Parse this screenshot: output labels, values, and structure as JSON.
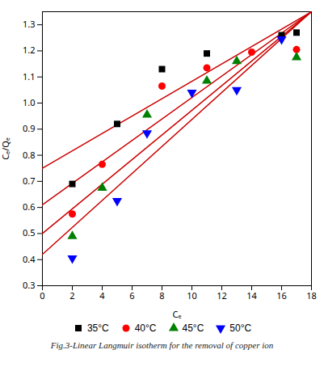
{
  "chart_data": {
    "type": "scatter",
    "title": "Fig.3-Linear Langmuir isotherm for the removal of copper ion",
    "xlabel": "Cₑ",
    "ylabel": "Cₑ/Qₑ",
    "xlim": [
      0,
      18
    ],
    "ylim": [
      0.3,
      1.35
    ],
    "xticks": [
      0,
      2,
      4,
      6,
      8,
      10,
      12,
      14,
      16,
      18
    ],
    "yticks": [
      0.3,
      0.4,
      0.5,
      0.6,
      0.7,
      0.8,
      0.9,
      {
        "value": 1,
        "label": "1.0"
      },
      1.1,
      1.2,
      1.3
    ],
    "grid": false,
    "series": [
      {
        "type": "line",
        "color": "#cc0000",
        "x": [
          0,
          18
        ],
        "values": [
          0.75,
          1.3494
        ]
      },
      {
        "type": "line",
        "color": "#cc0000",
        "x": [
          0,
          18
        ],
        "values": [
          0.61,
          1.3498
        ]
      },
      {
        "type": "line",
        "color": "#cc0000",
        "x": [
          0,
          18
        ],
        "values": [
          0.5,
          1.3496
        ]
      },
      {
        "type": "line",
        "color": "#cc0000",
        "x": [
          0,
          17.9639
        ],
        "values": [
          0.42,
          1.348735
        ]
      },
      {
        "type": "scatter",
        "name": "35°C",
        "color": "black",
        "marker": "square",
        "x": [
          2,
          5,
          8,
          11,
          16,
          17
        ],
        "values": [
          0.69,
          0.92,
          1.13,
          1.19,
          1.26,
          1.27
        ]
      },
      {
        "type": "scatter",
        "name": "40°C",
        "color": "red",
        "marker": "circle",
        "x": [
          2,
          4,
          8,
          11,
          14,
          17
        ],
        "values": [
          0.575,
          0.765,
          1.065,
          1.135,
          1.195,
          1.205
        ]
      },
      {
        "type": "scatter",
        "name": "45°C",
        "color": "green",
        "marker": "triangle-up",
        "x": [
          2,
          4,
          7,
          11,
          13,
          17
        ],
        "values": [
          0.49,
          0.675,
          0.955,
          1.085,
          1.16,
          1.175
        ]
      },
      {
        "type": "scatter",
        "name": "50°C",
        "color": "blue",
        "marker": "triangle-down",
        "x": [
          2,
          5,
          7,
          10,
          13,
          16
        ],
        "values": [
          0.405,
          0.625,
          0.885,
          1.04,
          1.05,
          1.245
        ]
      }
    ]
  }
}
